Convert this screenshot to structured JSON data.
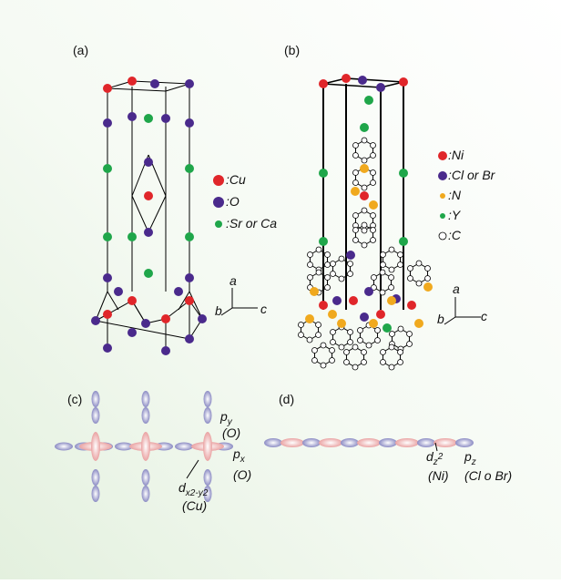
{
  "panels": [
    {
      "label": "(a)",
      "legend": [
        ":Cu",
        ":O",
        ":Sr or Ca"
      ],
      "axes": [
        "a",
        "b",
        "c"
      ]
    },
    {
      "label": "(b)",
      "legend": [
        ":Ni",
        ":Cl or Br",
        ":N",
        ":Y",
        ":C"
      ],
      "axes": [
        "a",
        "b",
        "c"
      ]
    },
    {
      "label": "(c)",
      "orbitals": [
        {
          "symbol": "p",
          "sub": "y",
          "atom": "(O)"
        },
        {
          "symbol": "p",
          "sub": "x",
          "atom": "(O)"
        },
        {
          "symbol": "d",
          "sub": "x2-y2",
          "atom": "(Cu)"
        }
      ]
    },
    {
      "label": "(d)",
      "orbitals": [
        {
          "symbol": "d",
          "sub": "z",
          "sup": "2",
          "atom": "(Ni)"
        },
        {
          "symbol": "p",
          "sub": "z",
          "atom": "(Cl o Br)"
        }
      ]
    }
  ]
}
